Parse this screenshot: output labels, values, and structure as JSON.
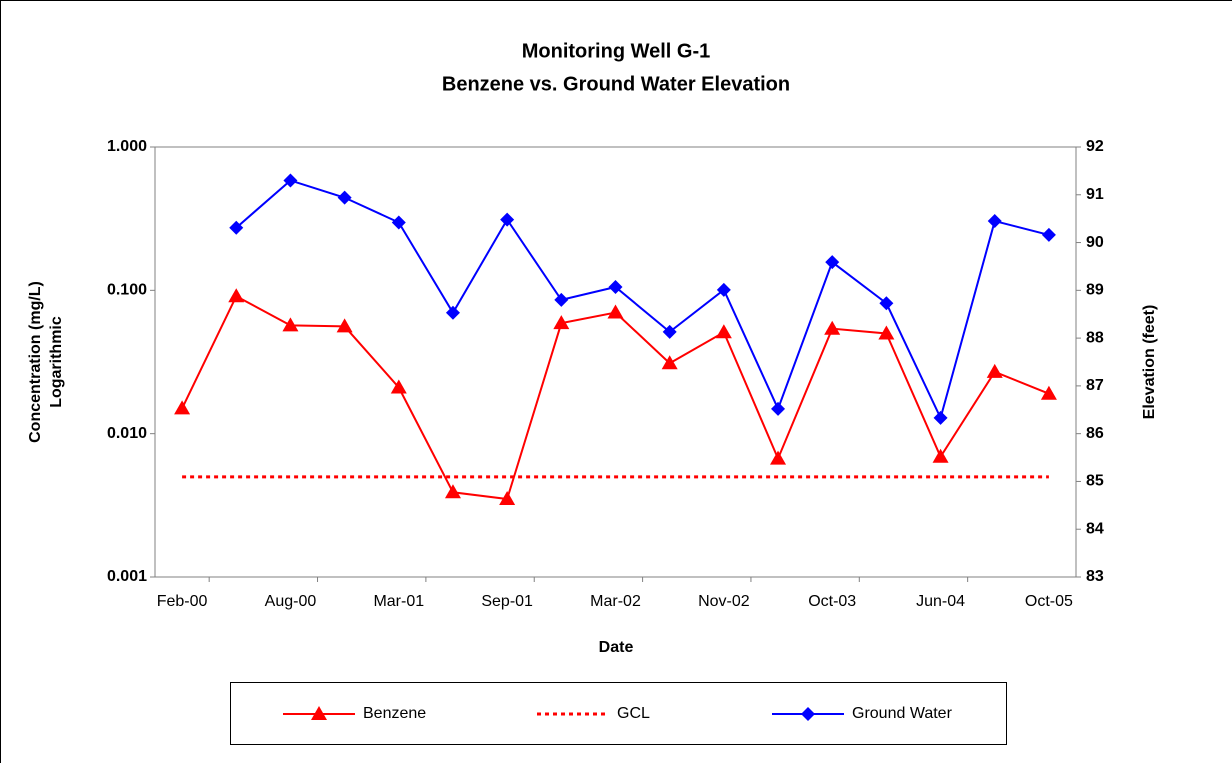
{
  "chart_data": {
    "type": "line",
    "title": "Monitoring Well G-1",
    "subtitle": "Benzene vs. Ground Water Elevation",
    "xlabel": "Date",
    "ylabel": [
      "Concentration (mg/L)",
      "Logarithmic"
    ],
    "y2label": "Elevation (feet)",
    "categories": [
      "Feb-00",
      null,
      "Aug-00",
      null,
      "Mar-01",
      null,
      "Sep-01",
      null,
      "Mar-02",
      null,
      "Nov-02",
      null,
      "Oct-03",
      null,
      "Jun-04",
      null,
      "Oct-05"
    ],
    "ylog": true,
    "ylim": [
      0.001,
      1
    ],
    "yticks": [
      0.001,
      {
        "value": 0.01,
        "label": "0.010"
      },
      {
        "value": 0.1,
        "label": "0.100"
      },
      {
        "value": 1,
        "label": "1.000"
      }
    ],
    "y2lim": [
      83,
      92
    ],
    "y2ticks": [
      83,
      84,
      85,
      86,
      87,
      88,
      89,
      90,
      91,
      92
    ],
    "grid": false,
    "legend": "bottom",
    "series": [
      {
        "name": "Benzene",
        "color": "#ff0000",
        "linestyle": "solid",
        "marker": "triangle",
        "values": [
          0.015,
          0.091,
          0.057,
          0.056,
          0.021,
          0.0039,
          0.0035,
          0.059,
          0.07,
          0.031,
          0.051,
          0.0067,
          0.054,
          0.05,
          0.0069,
          0.027,
          0.019
        ]
      },
      {
        "name": "GCL",
        "color": "#ff0000",
        "linestyle": "dotted",
        "marker": null,
        "values": [
          0.005,
          0.005,
          0.005,
          0.005,
          0.005,
          0.005,
          0.005,
          0.005,
          0.005,
          0.005,
          0.005,
          0.005,
          0.005,
          0.005,
          0.005,
          0.005,
          0.005
        ]
      },
      {
        "name": "Ground Water",
        "color": "#0000ff",
        "linestyle": "solid",
        "marker": "diamond",
        "axis": "y2",
        "values": [
          null,
          90.31,
          91.3,
          90.94,
          90.42,
          88.53,
          90.48,
          88.8,
          89.07,
          88.13,
          89.01,
          86.52,
          89.59,
          88.73,
          86.33,
          90.45,
          90.16
        ]
      }
    ]
  }
}
